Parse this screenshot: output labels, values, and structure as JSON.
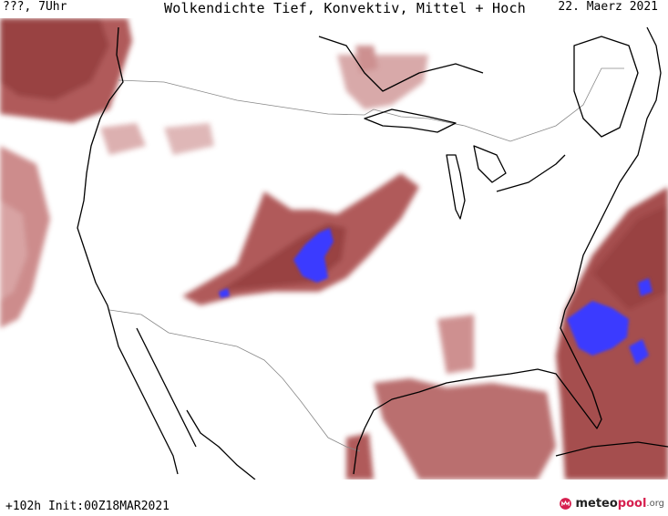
{
  "header": {
    "location_time": "???, 7Uhr",
    "title": "Wolkendichte  Tief, Konvektiv, Mittel + Hoch",
    "date": "22. Maerz 2021"
  },
  "footer": {
    "forecast_info": "+102h Init:00Z18MAR2021",
    "brand_part1": "meteo",
    "brand_part2": "pool",
    "brand_part3": ".org"
  },
  "colors": {
    "cloud_dense": "#8e2d2d",
    "cloud_mid": "#b25a5a",
    "cloud_light": "#d49a9a",
    "convective": "#3a3aff",
    "coastline": "#000000",
    "border": "#888888",
    "brand_accent": "#d6204f"
  },
  "icons": {
    "logo": "meteopool-logo-icon"
  }
}
